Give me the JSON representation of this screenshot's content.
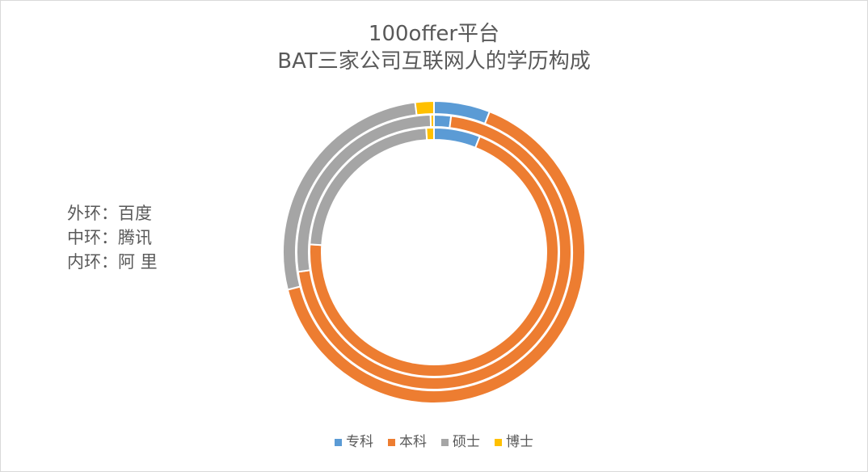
{
  "title": {
    "line1": "100offer平台",
    "line2": "BAT三家公司互联网人的学历构成"
  },
  "ring_note": [
    "外环：百度",
    "中环：腾讯",
    "内环：阿 里"
  ],
  "chart_data": {
    "type": "doughnut",
    "categories": [
      "专科",
      "本科",
      "硕士",
      "博士"
    ],
    "colors": [
      "#5b9bd5",
      "#ed7d31",
      "#a5a5a5",
      "#ffc000"
    ],
    "rings": [
      {
        "name": "百度",
        "position": "outer",
        "values": [
          6,
          65,
          27,
          2
        ]
      },
      {
        "name": "腾讯",
        "position": "middle",
        "values": [
          2,
          71,
          27,
          0.4
        ]
      },
      {
        "name": "阿 里",
        "position": "inner",
        "values": [
          6,
          70,
          23,
          1
        ]
      }
    ],
    "legend_position": "bottom"
  }
}
